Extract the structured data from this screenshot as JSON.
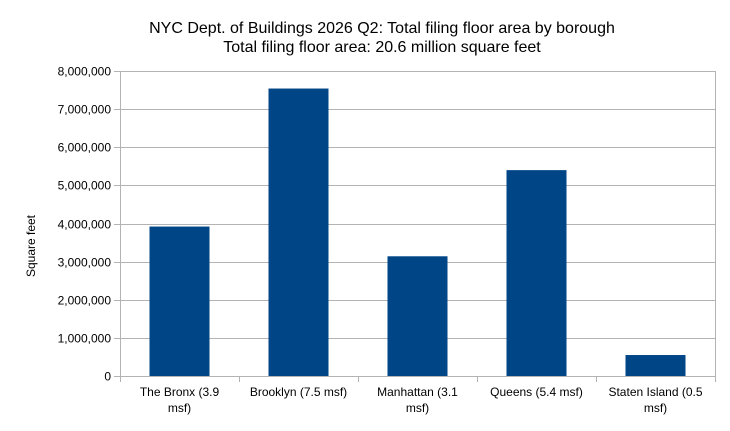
{
  "chart_data": {
    "type": "bar",
    "title": "NYC Dept. of Buildings 2026 Q2: Total filing floor area by borough",
    "subtitle": "Total filing floor area: 20.6 million square feet",
    "xlabel": "",
    "ylabel": "Square feet",
    "categories": [
      [
        "The Bronx (3.9",
        "msf)"
      ],
      [
        "Brooklyn (7.5 msf)"
      ],
      [
        "Manhattan (3.1",
        "msf)"
      ],
      [
        "Queens (5.4 msf)"
      ],
      [
        "Staten Island (0.5",
        "msf)"
      ]
    ],
    "values": [
      3920000,
      7540000,
      3140000,
      5400000,
      550000
    ],
    "ylim": [
      0,
      8000000
    ],
    "yticks": [
      "0",
      "1,000,000",
      "2,000,000",
      "3,000,000",
      "4,000,000",
      "5,000,000",
      "6,000,000",
      "7,000,000",
      "8,000,000"
    ],
    "grid": true,
    "legend": "none",
    "bar_color": "#004586",
    "grid_color": "#b3b3b3"
  }
}
